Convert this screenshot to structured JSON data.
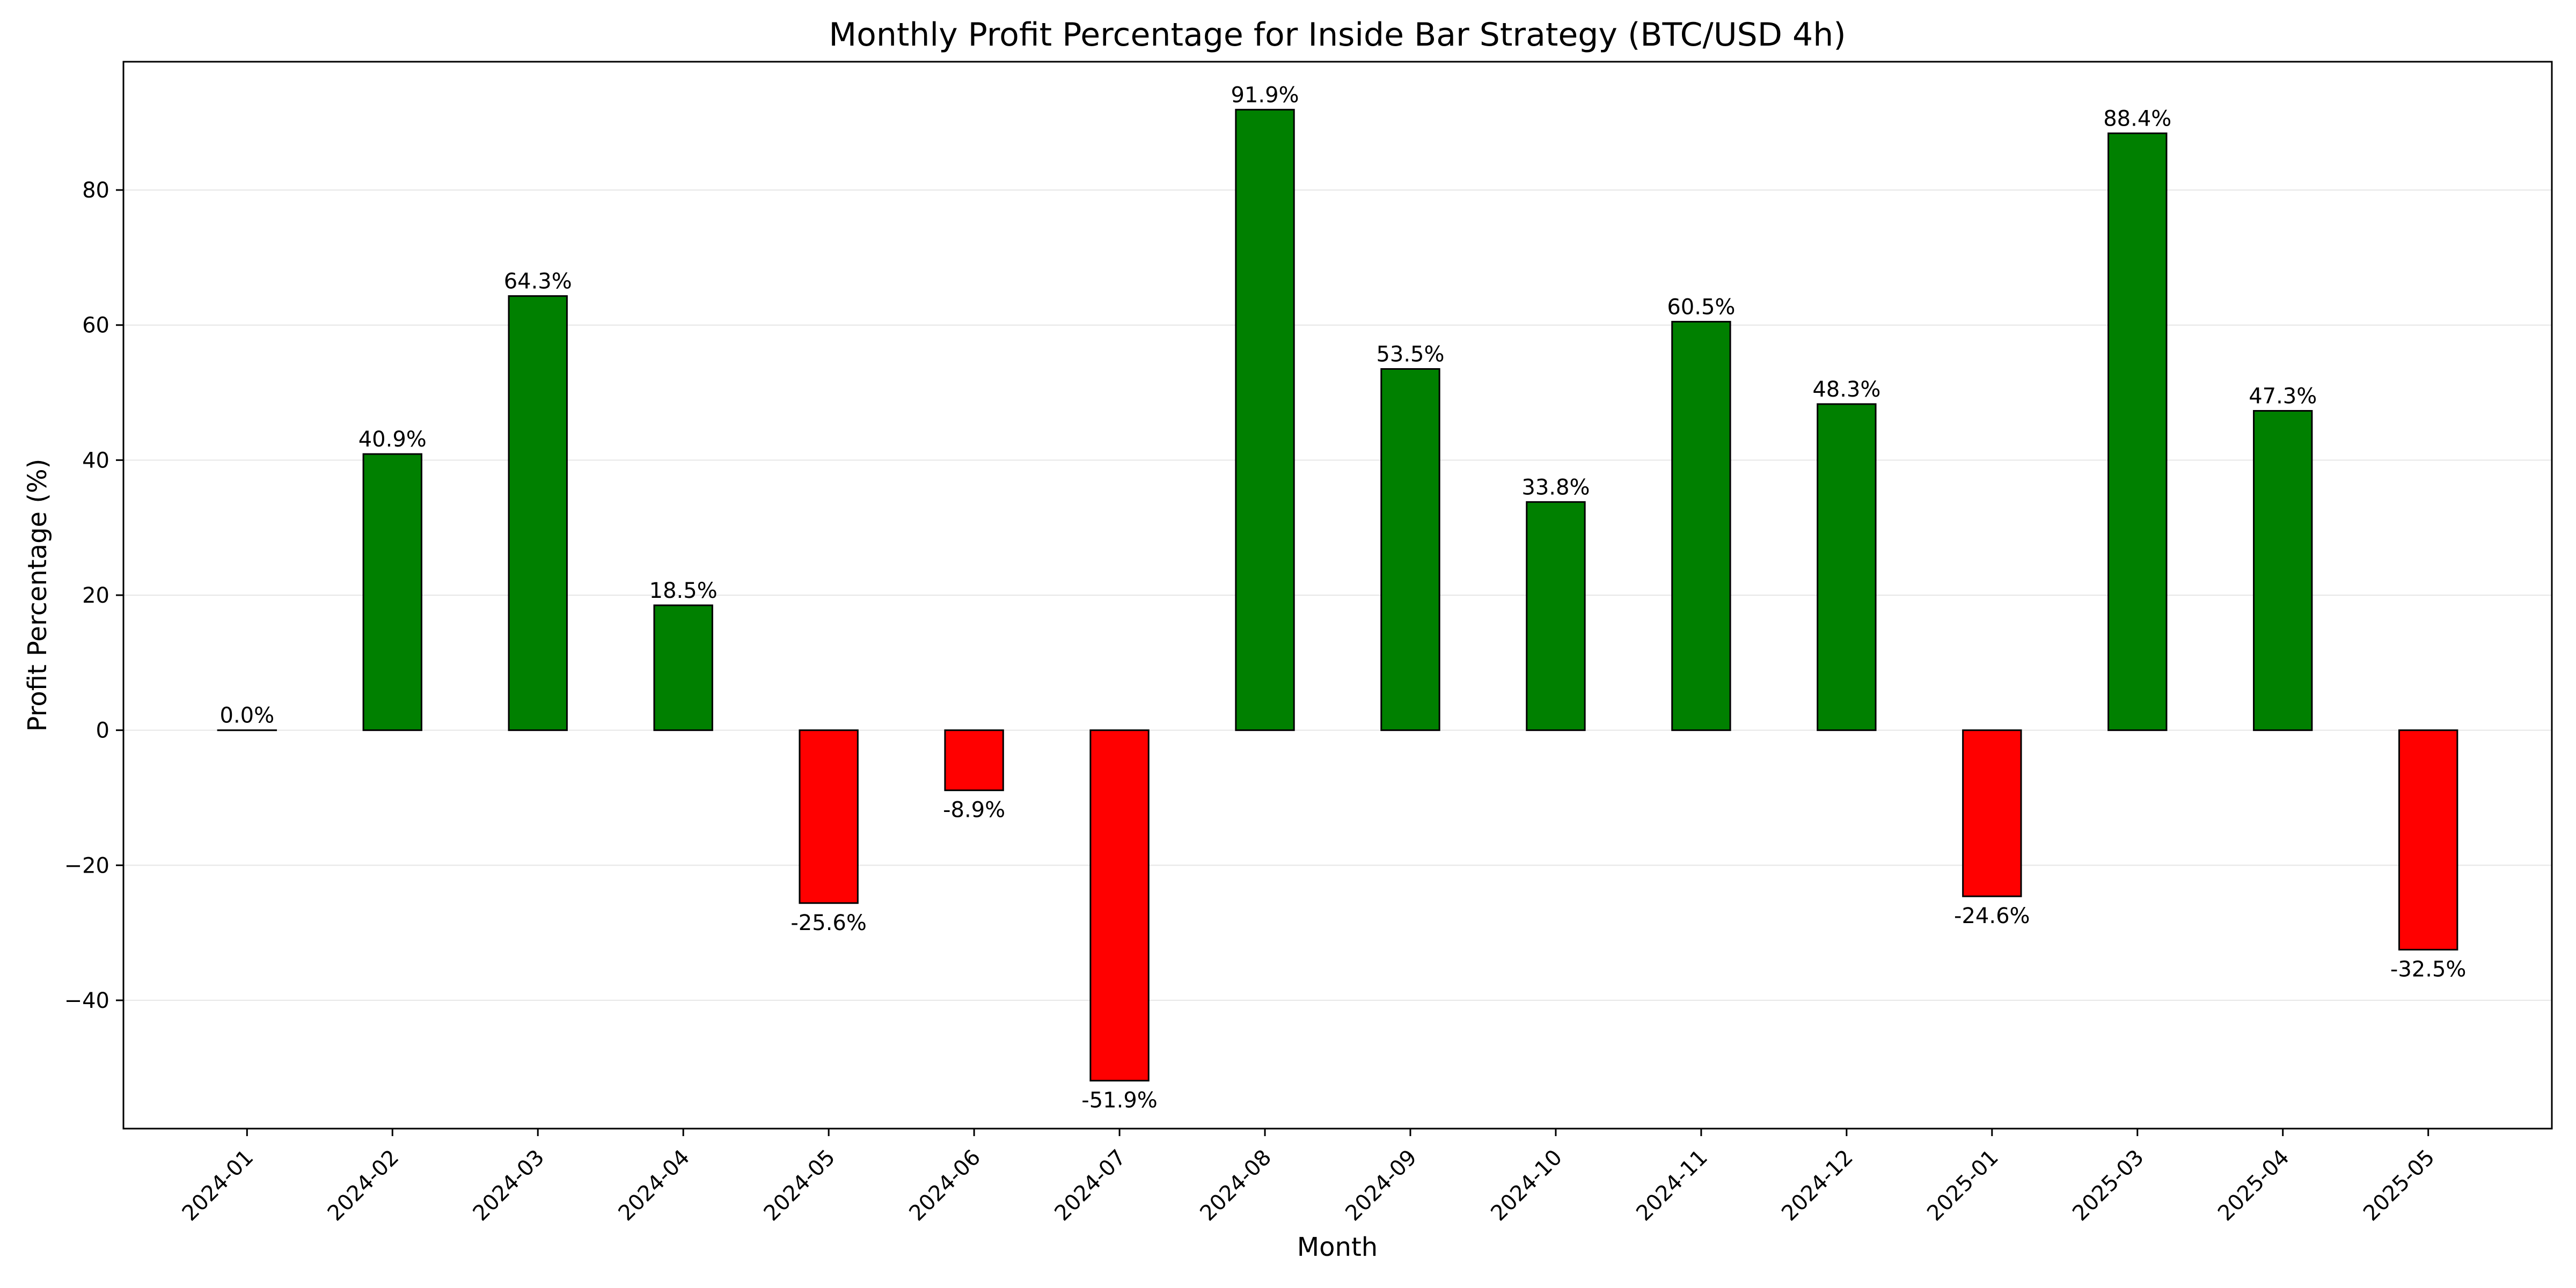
{
  "chart_data": {
    "type": "bar",
    "title": "Monthly Profit Percentage for Inside Bar Strategy (BTC/USD 4h)",
    "xlabel": "Month",
    "ylabel": "Profit Percentage (%)",
    "categories": [
      "2024-01",
      "2024-02",
      "2024-03",
      "2024-04",
      "2024-05",
      "2024-06",
      "2024-07",
      "2024-08",
      "2024-09",
      "2024-10",
      "2024-11",
      "2024-12",
      "2025-01",
      "2025-03",
      "2025-04",
      "2025-05"
    ],
    "values": [
      0.0,
      40.9,
      64.3,
      18.5,
      -25.6,
      -8.9,
      -51.9,
      91.9,
      53.5,
      33.8,
      60.5,
      48.3,
      -24.6,
      88.4,
      47.3,
      -32.5
    ],
    "data_labels": [
      "0.0%",
      "40.9%",
      "64.3%",
      "18.5%",
      "-25.6%",
      "-8.9%",
      "-51.9%",
      "91.9%",
      "53.5%",
      "33.8%",
      "60.5%",
      "48.3%",
      "-24.6%",
      "88.4%",
      "47.3%",
      "-32.5%"
    ],
    "ylim": [
      -59,
      99
    ],
    "yticks": [
      -40,
      -20,
      0,
      20,
      40,
      60,
      80
    ],
    "ytick_labels": [
      "−40",
      "−20",
      "0",
      "20",
      "40",
      "60",
      "80"
    ],
    "grid": "horizontal",
    "legend": "none",
    "colors": {
      "positive": "#008000",
      "negative": "#ff0000",
      "edge": "#000000",
      "grid": "#e6e6e6"
    }
  }
}
